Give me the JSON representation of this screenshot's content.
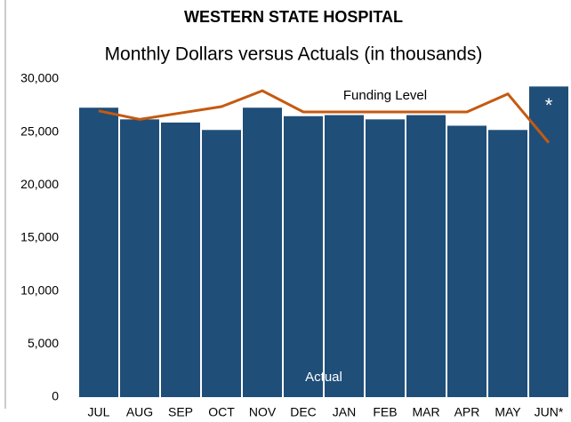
{
  "chart_data": {
    "type": "bar_line",
    "title": "WESTERN STATE HOSPITAL",
    "subtitle": "Monthly Dollars versus Actuals (in thousands)",
    "categories": [
      "JUL",
      "AUG",
      "SEP",
      "OCT",
      "NOV",
      "DEC",
      "JAN",
      "FEB",
      "MAR",
      "APR",
      "MAY",
      "JUN*"
    ],
    "series": [
      {
        "name": "Actual",
        "type": "bar",
        "color": "#1f4e79",
        "values": [
          27300,
          26200,
          25900,
          25200,
          27300,
          26500,
          26600,
          26200,
          26600,
          25600,
          25200,
          29300
        ]
      },
      {
        "name": "Funding Level",
        "type": "line",
        "color": "#c55a11",
        "values": [
          27000,
          26200,
          26800,
          27400,
          28900,
          26900,
          26900,
          26900,
          26900,
          26900,
          28600,
          24000
        ]
      }
    ],
    "annotations": [
      "*"
    ],
    "ylim": [
      0,
      30000
    ],
    "yticks": [
      0,
      {
        "value": 5000,
        "label": "5,000"
      },
      {
        "value": 10000,
        "label": "10,000"
      },
      {
        "value": 15000,
        "label": "15,000"
      },
      {
        "value": 20000,
        "label": "20,000"
      },
      {
        "value": 25000,
        "label": "25,000"
      },
      {
        "value": 30000,
        "label": "30,000"
      }
    ],
    "grid": false
  }
}
